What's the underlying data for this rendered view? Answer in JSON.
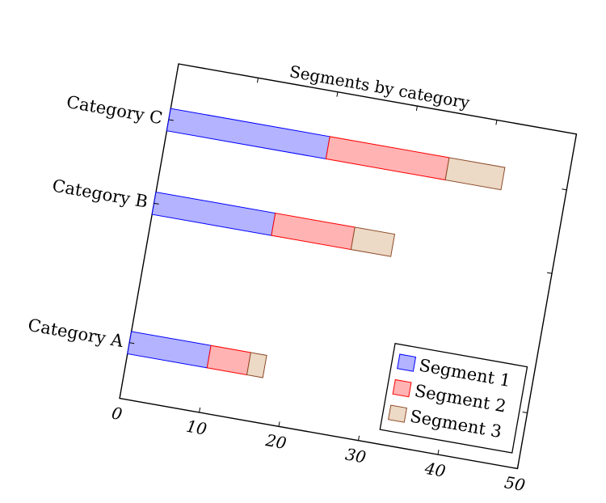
{
  "chart_data": {
    "type": "bar",
    "orientation": "horizontal",
    "stacked": true,
    "title": "Segments by category",
    "xlabel": "",
    "ylabel": "",
    "categories": [
      "Category A",
      "Category B",
      "Category C"
    ],
    "xlim": [
      0,
      50
    ],
    "x_ticks": [
      "0",
      "10",
      "20",
      "30",
      "40",
      "50"
    ],
    "series": [
      {
        "name": "Segment 1",
        "values": [
          10,
          15,
          20
        ],
        "fill": "#b3b3ff",
        "stroke": "#0000ff"
      },
      {
        "name": "Segment 2",
        "values": [
          5,
          10,
          15
        ],
        "fill": "#ffb3b3",
        "stroke": "#ff0000"
      },
      {
        "name": "Segment 3",
        "values": [
          2,
          5,
          7
        ],
        "fill": "#ecd9c6",
        "stroke": "#8c4a26"
      }
    ],
    "legend": {
      "position": "bottom-right"
    },
    "grid": false,
    "rotation_deg": 10
  }
}
